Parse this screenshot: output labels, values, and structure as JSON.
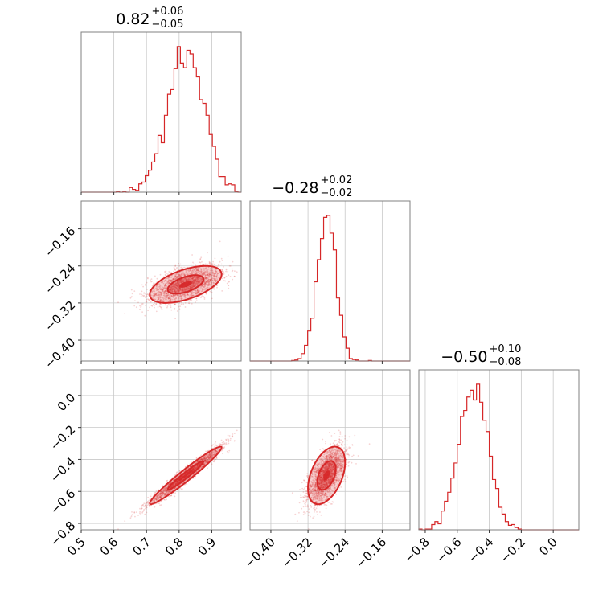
{
  "chart_data": {
    "type": "corner",
    "color": "#d62728",
    "parameters": [
      {
        "index": 0,
        "median": "0.82",
        "plus": "+0.06",
        "minus": "−0.05",
        "mean": 0.82,
        "sigma": 0.055,
        "range": [
          0.5,
          0.99
        ],
        "ticks": [
          0.5,
          0.6,
          0.7,
          0.8,
          0.9
        ],
        "tick_labels": [
          "0.5",
          "0.6",
          "0.7",
          "0.8",
          "0.9"
        ]
      },
      {
        "index": 1,
        "median": "−0.28",
        "plus": "+0.02",
        "minus": "−0.02",
        "mean": -0.28,
        "sigma": 0.02,
        "range": [
          -0.445,
          -0.1
        ],
        "ticks": [
          -0.4,
          -0.32,
          -0.24,
          -0.16
        ],
        "tick_labels": [
          "−0.40",
          "−0.32",
          "−0.24",
          "−0.16"
        ]
      },
      {
        "index": 2,
        "median": "−0.50",
        "plus": "+0.10",
        "minus": "−0.08",
        "mean": -0.5,
        "sigma": 0.09,
        "range": [
          -0.84,
          0.16
        ],
        "ticks": [
          -0.8,
          -0.6,
          -0.4,
          -0.2,
          0.0
        ],
        "tick_labels": [
          "−0.8",
          "−0.6",
          "−0.4",
          "−0.2",
          "0.0"
        ]
      }
    ],
    "correlations": {
      "1_0": 0.55,
      "2_0": 0.97,
      "2_1": 0.45
    },
    "grid": true,
    "contour_levels": [
      1.0,
      2.0
    ]
  }
}
